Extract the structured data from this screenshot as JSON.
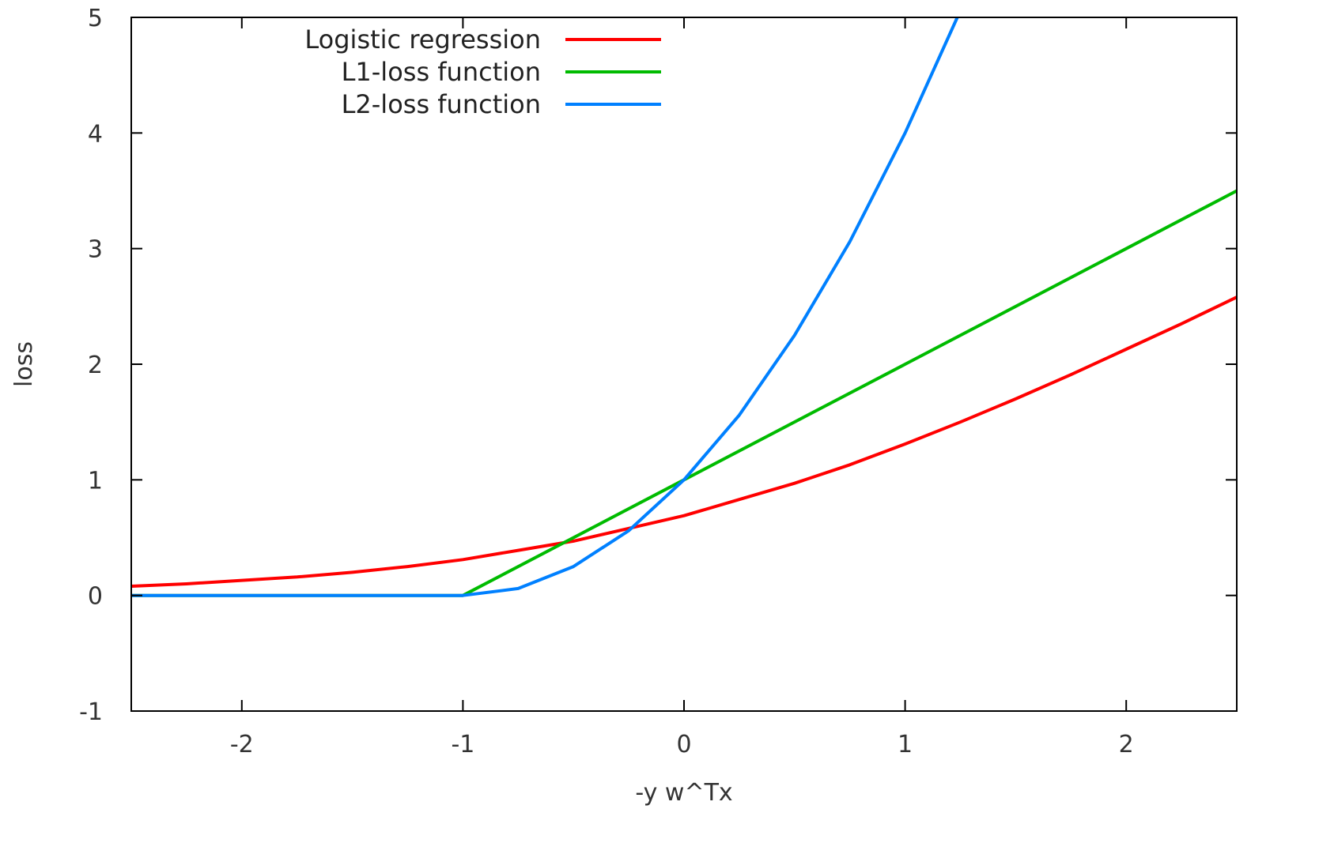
{
  "chart_data": {
    "type": "line",
    "title": "",
    "xlabel": "-y w^Tx",
    "ylabel": "loss",
    "xlim": [
      -2.5,
      2.5
    ],
    "ylim": [
      -1,
      5
    ],
    "xticks": [
      -2,
      -1,
      0,
      1,
      2
    ],
    "yticks": [
      -1,
      0,
      1,
      2,
      3,
      4,
      5
    ],
    "grid": false,
    "legend_position": "top-left",
    "series": [
      {
        "name": "Logistic regression",
        "color": "#ff0000",
        "x": [
          -2.5,
          -2.25,
          -2.0,
          -1.75,
          -1.5,
          -1.25,
          -1.0,
          -0.75,
          -0.5,
          -0.25,
          0.0,
          0.25,
          0.5,
          0.75,
          1.0,
          1.25,
          1.5,
          1.75,
          2.0,
          2.25,
          2.5
        ],
        "values": [
          0.08,
          0.1,
          0.13,
          0.16,
          0.2,
          0.25,
          0.31,
          0.39,
          0.47,
          0.58,
          0.69,
          0.83,
          0.97,
          1.13,
          1.31,
          1.5,
          1.7,
          1.91,
          2.13,
          2.35,
          2.58
        ]
      },
      {
        "name": "L1-loss function",
        "color": "#00bb00",
        "x": [
          -2.5,
          -1.0,
          0.0,
          1.0,
          2.0,
          2.5
        ],
        "values": [
          0,
          0,
          1.0,
          2.0,
          3.0,
          3.5
        ]
      },
      {
        "name": "L2-loss function",
        "color": "#0080ff",
        "x": [
          -2.5,
          -1.0,
          -0.75,
          -0.5,
          -0.25,
          0.0,
          0.25,
          0.5,
          0.75,
          1.0,
          1.236
        ],
        "values": [
          0,
          0,
          0.06,
          0.25,
          0.56,
          1.0,
          1.56,
          2.25,
          3.06,
          4.0,
          5.0
        ]
      }
    ]
  }
}
